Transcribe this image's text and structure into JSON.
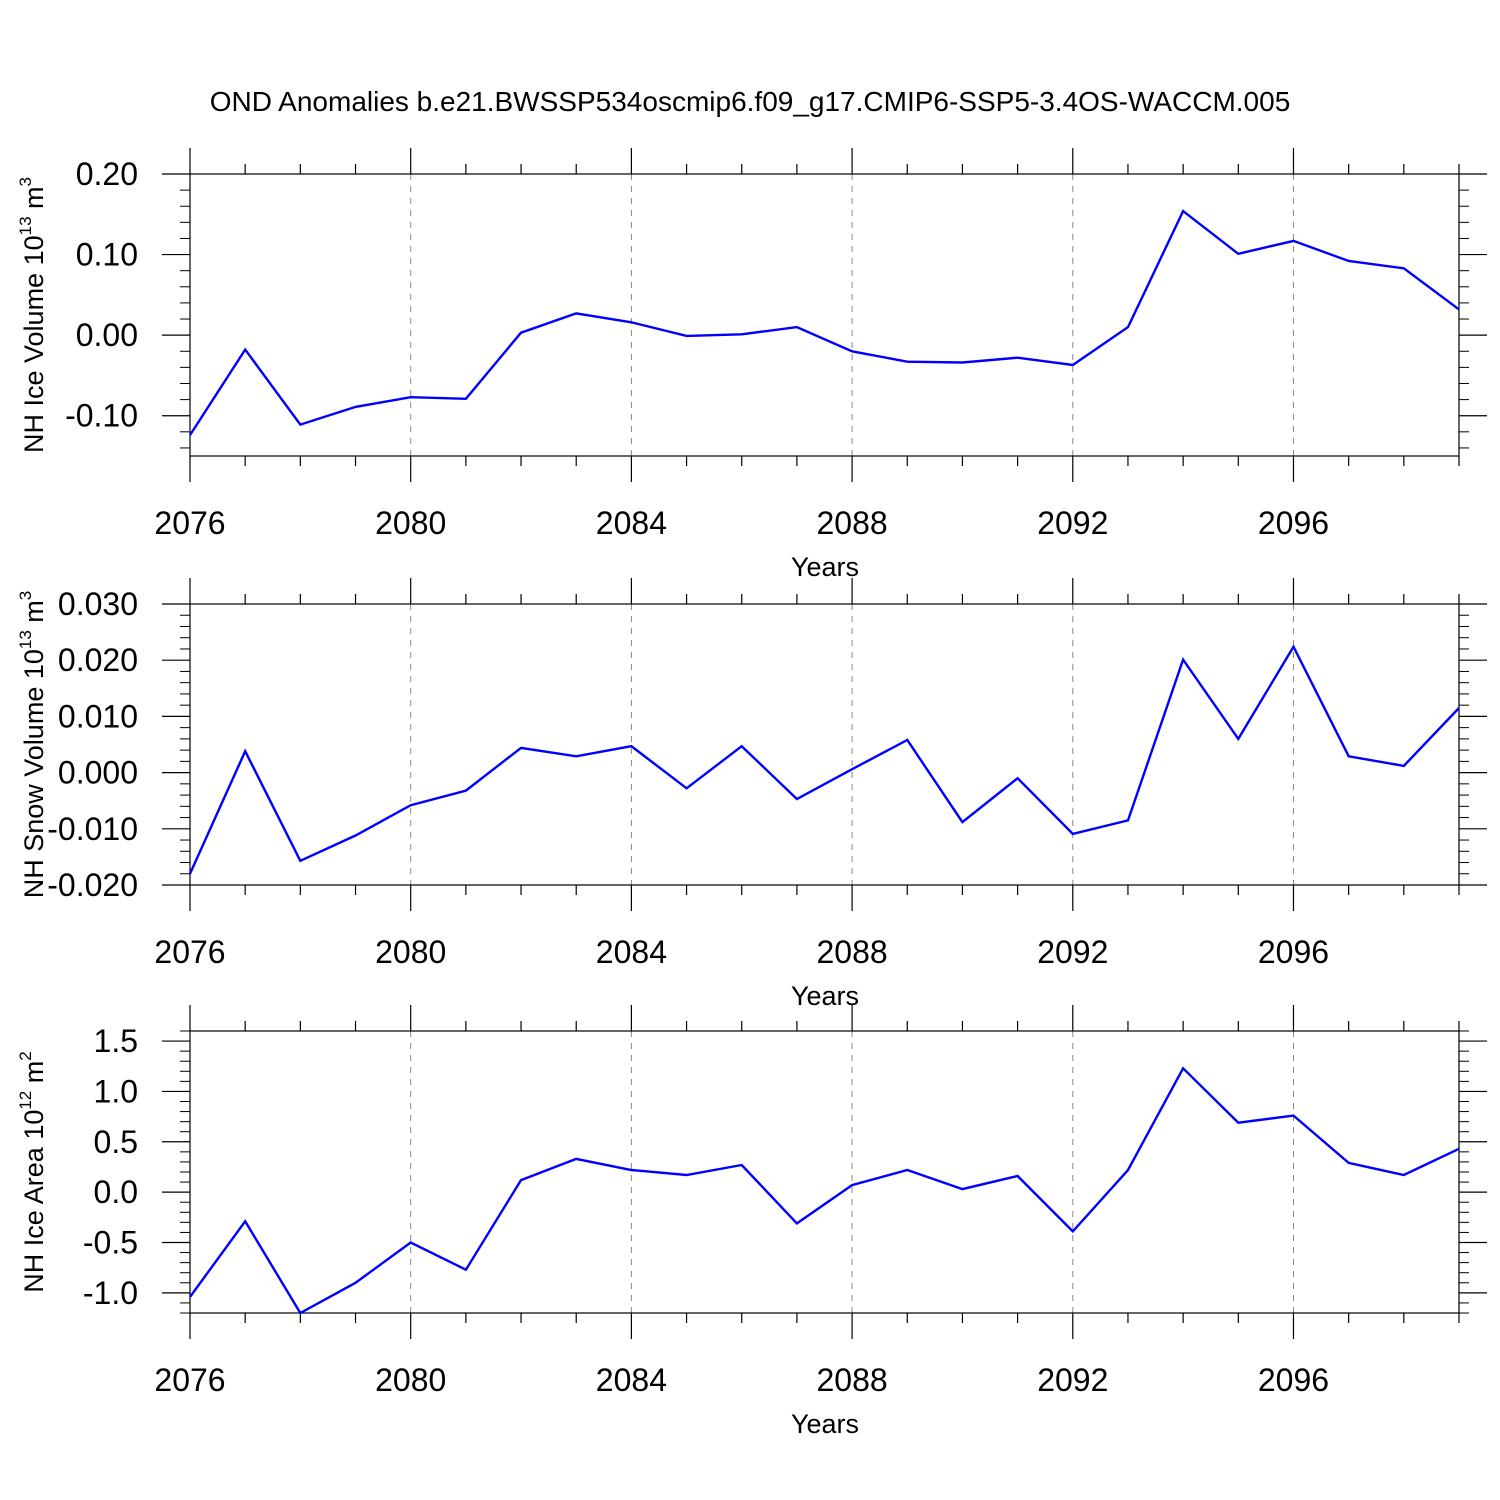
{
  "chart_data": {
    "type": "line",
    "title": "OND Anomalies b.e21.BWSSP534oscmip6.f09_g17.CMIP6-SSP5-3.4OS-WACCM.005",
    "line_color": "#0000ff",
    "panels": [
      {
        "name": "ice-volume",
        "ylabel_main": "NH Ice Volume 10",
        "ylabel_exp": "13",
        "ylabel_unit": " m",
        "ylabel_unit_exp": "3",
        "xlabel": "Years",
        "ylim": [
          -0.15,
          0.2
        ],
        "yticks": [
          0.2,
          0.1,
          0.0,
          -0.1
        ],
        "ytick_labels": [
          "0.20",
          "0.10",
          "0.00",
          "-0.10"
        ],
        "yminor": 0.02,
        "x": [
          2076,
          2077,
          2078,
          2079,
          2080,
          2081,
          2082,
          2083,
          2084,
          2085,
          2086,
          2087,
          2088,
          2089,
          2090,
          2091,
          2092,
          2093,
          2094,
          2095,
          2096,
          2097,
          2098,
          2099
        ],
        "values": [
          -0.124,
          -0.018,
          -0.111,
          -0.089,
          -0.077,
          -0.079,
          0.003,
          0.027,
          0.016,
          -0.001,
          0.001,
          0.01,
          -0.02,
          -0.033,
          -0.034,
          -0.028,
          -0.037,
          0.01,
          0.154,
          0.101,
          0.117,
          0.092,
          0.083,
          0.032
        ]
      },
      {
        "name": "snow-volume",
        "ylabel_main": "NH Snow Volume 10",
        "ylabel_exp": "13",
        "ylabel_unit": " m",
        "ylabel_unit_exp": "3",
        "xlabel": "Years",
        "ylim": [
          -0.02,
          0.03
        ],
        "yticks": [
          0.03,
          0.02,
          0.01,
          0.0,
          -0.01,
          -0.02
        ],
        "ytick_labels": [
          "0.030",
          "0.020",
          "0.010",
          "0.000",
          "-0.010",
          "-0.020"
        ],
        "yminor": 0.002,
        "x": [
          2076,
          2077,
          2078,
          2079,
          2080,
          2081,
          2082,
          2083,
          2084,
          2085,
          2086,
          2087,
          2088,
          2089,
          2090,
          2091,
          2092,
          2093,
          2094,
          2095,
          2096,
          2097,
          2098,
          2099
        ],
        "values": [
          -0.018,
          0.0038,
          -0.0157,
          -0.0112,
          -0.0058,
          -0.0032,
          0.0044,
          0.0029,
          0.0047,
          -0.0028,
          0.0047,
          -0.0047,
          0.0006,
          0.0058,
          -0.0088,
          -0.001,
          -0.0109,
          -0.0085,
          0.0201,
          0.006,
          0.0224,
          0.0029,
          0.0012,
          0.0115
        ]
      },
      {
        "name": "ice-area",
        "ylabel_main": "NH Ice Area 10",
        "ylabel_exp": "12",
        "ylabel_unit": " m",
        "ylabel_unit_exp": "2",
        "xlabel": "Years",
        "ylim": [
          -1.2,
          1.6
        ],
        "yticks": [
          1.5,
          1.0,
          0.5,
          0.0,
          -0.5,
          -1.0
        ],
        "ytick_labels": [
          "1.5",
          "1.0",
          "0.5",
          "0.0",
          "-0.5",
          "-1.0"
        ],
        "yminor": 0.1,
        "x": [
          2076,
          2077,
          2078,
          2079,
          2080,
          2081,
          2082,
          2083,
          2084,
          2085,
          2086,
          2087,
          2088,
          2089,
          2090,
          2091,
          2092,
          2093,
          2094,
          2095,
          2096,
          2097,
          2098,
          2099
        ],
        "values": [
          -1.04,
          -0.29,
          -1.2,
          -0.9,
          -0.5,
          -0.77,
          0.12,
          0.33,
          0.22,
          0.17,
          0.27,
          -0.31,
          0.07,
          0.22,
          0.03,
          0.16,
          -0.39,
          0.22,
          1.23,
          0.69,
          0.76,
          0.29,
          0.17,
          0.43
        ]
      }
    ],
    "xticks": [
      2076,
      2080,
      2084,
      2088,
      2092,
      2096
    ],
    "xtick_labels": [
      "2076",
      "2080",
      "2084",
      "2088",
      "2092",
      "2096"
    ],
    "xminor_step": 1,
    "xlim": [
      2076,
      2099
    ],
    "grid": "vertical dashed at major x ticks"
  }
}
